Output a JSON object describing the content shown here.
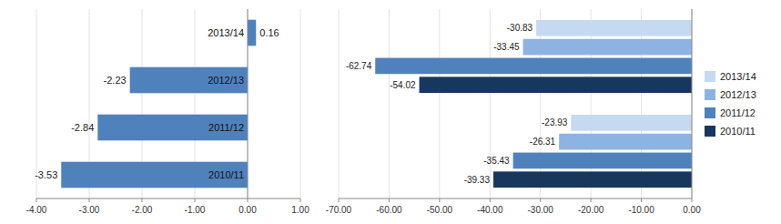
{
  "chart_data": [
    {
      "type": "bar",
      "orientation": "horizontal",
      "categories": [
        "2013/14",
        "2012/13",
        "2011/12",
        "2010/11"
      ],
      "values": [
        0.16,
        -2.23,
        -2.84,
        -3.53
      ],
      "color": "#4f81bd",
      "xlim": [
        -4.0,
        1.0
      ],
      "xticks": [
        {
          "value": -4.0,
          "label": "-4.00"
        },
        {
          "value": -3.0,
          "label": "-3.00"
        },
        {
          "value": -2.0,
          "label": "-2.00"
        },
        {
          "value": -1.0,
          "label": "-1.00"
        },
        {
          "value": 0.0,
          "label": "0.00"
        },
        {
          "value": 1.0,
          "label": "1.00"
        }
      ],
      "grid": true,
      "data_labels": true
    },
    {
      "type": "bar",
      "orientation": "horizontal",
      "categories": [
        null,
        null
      ],
      "series": [
        {
          "name": "2013/14",
          "color": "#c5d9f1",
          "values": [
            -30.83,
            -23.93
          ]
        },
        {
          "name": "2012/13",
          "color": "#8db3e2",
          "values": [
            -33.45,
            -26.31
          ]
        },
        {
          "name": "2011/12",
          "color": "#4f81bd",
          "values": [
            -62.74,
            -35.43
          ]
        },
        {
          "name": "2010/11",
          "color": "#17375e",
          "values": [
            -54.02,
            -39.33
          ]
        }
      ],
      "xlim": [
        -70.0,
        0.0
      ],
      "xticks": [
        {
          "value": -70.0,
          "label": "-70.00"
        },
        {
          "value": -60.0,
          "label": "-60.00"
        },
        {
          "value": -50.0,
          "label": "-50.00"
        },
        {
          "value": -40.0,
          "label": "-40.00"
        },
        {
          "value": -30.0,
          "label": "-30.00"
        },
        {
          "value": -20.0,
          "label": "-20.00"
        },
        {
          "value": -10.0,
          "label": "-10.00"
        },
        {
          "value": 0.0,
          "label": "0.00"
        }
      ],
      "grid": true,
      "data_labels": true,
      "tick_labels": "x",
      "legend": "right"
    }
  ]
}
